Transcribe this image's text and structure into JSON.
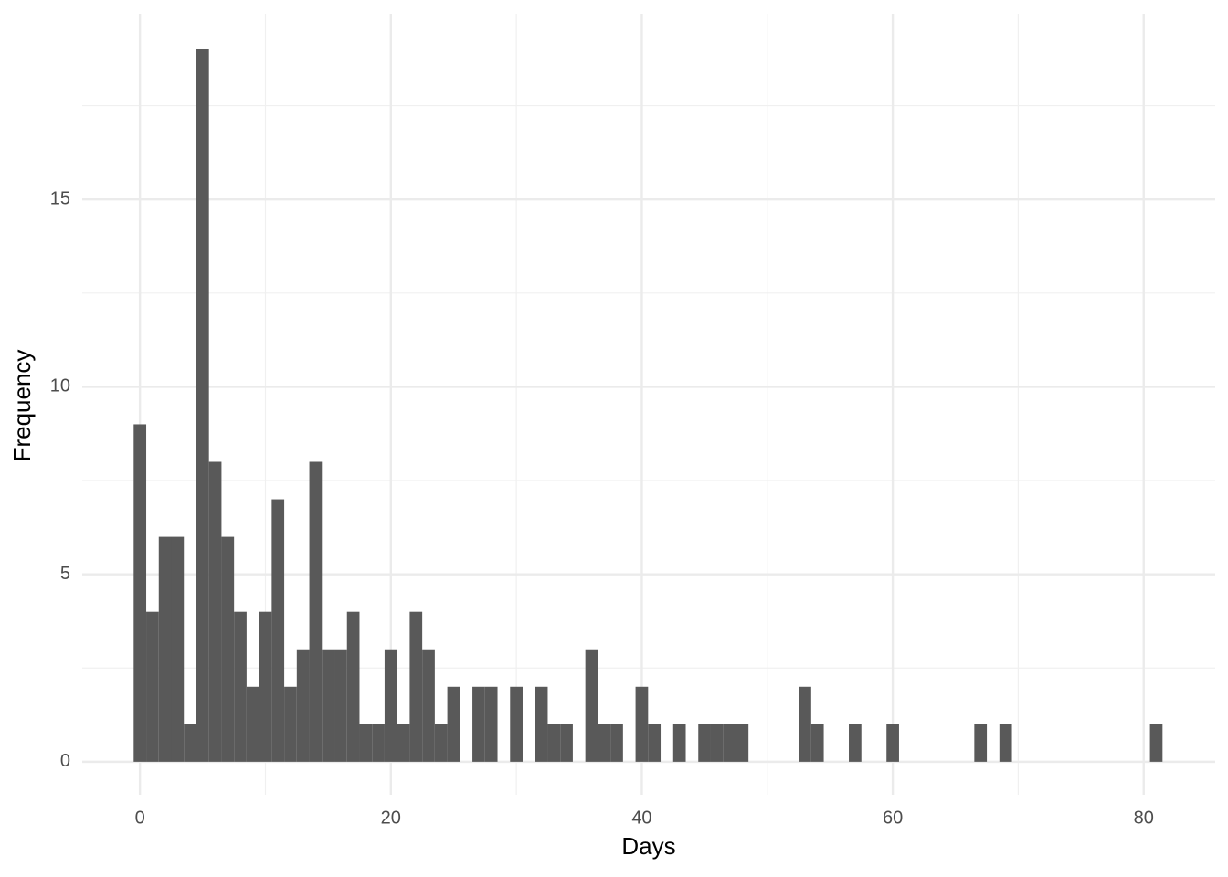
{
  "chart_data": {
    "type": "histogram",
    "x_label": "Days",
    "y_label": "Frequency",
    "bins": [
      -0.5,
      0.5,
      1.5,
      2.5,
      3.5,
      4.5,
      5.5,
      6.5,
      7.5,
      8.5,
      9.5,
      10.5,
      11.5,
      12.5,
      13.5,
      14.5,
      15.5,
      16.5,
      17.5,
      18.5,
      19.5,
      20.5,
      21.5,
      22.5,
      23.5,
      24.5,
      25.5,
      26.5,
      27.5,
      28.5,
      29.5,
      30.5,
      31.5,
      32.5,
      33.5,
      34.5,
      35.5,
      36.5,
      37.5,
      38.5,
      39.5,
      40.5,
      41.5,
      42.5,
      43.5,
      44.5,
      45.5,
      46.5,
      47.5,
      48.5,
      49.5,
      50.5,
      51.5,
      52.5,
      53.5,
      54.5,
      55.5,
      56.5,
      57.5,
      58.5,
      59.5,
      60.5,
      61.5,
      62.5,
      63.5,
      64.5,
      65.5,
      66.5,
      67.5,
      68.5,
      69.5,
      70.5,
      71.5,
      72.5,
      73.5,
      74.5,
      75.5,
      76.5,
      77.5,
      78.5,
      79.5,
      80.5,
      81.5
    ],
    "counts": [
      9,
      4,
      6,
      6,
      1,
      19,
      8,
      6,
      4,
      2,
      4,
      7,
      2,
      3,
      8,
      3,
      3,
      4,
      1,
      1,
      3,
      1,
      4,
      3,
      1,
      2,
      0,
      2,
      2,
      0,
      2,
      0,
      2,
      1,
      1,
      0,
      3,
      1,
      1,
      0,
      2,
      1,
      0,
      1,
      0,
      1,
      1,
      1,
      1,
      0,
      0,
      0,
      0,
      2,
      1,
      0,
      0,
      1,
      0,
      0,
      1,
      0,
      0,
      0,
      0,
      0,
      0,
      1,
      0,
      1,
      0,
      0,
      0,
      0,
      0,
      0,
      0,
      0,
      0,
      0,
      0,
      1
    ],
    "color": "#595959",
    "xlim": [
      -4.6,
      85.7
    ],
    "ylim": [
      -0.88,
      19.95
    ],
    "xticks": [
      0,
      20,
      40,
      60,
      80
    ],
    "yticks": [
      0,
      5,
      10,
      15
    ],
    "x_minor_ticks": [
      10,
      30,
      50,
      70
    ],
    "y_minor_ticks": [
      2.5,
      7.5,
      12.5,
      17.5
    ],
    "grid": true
  }
}
